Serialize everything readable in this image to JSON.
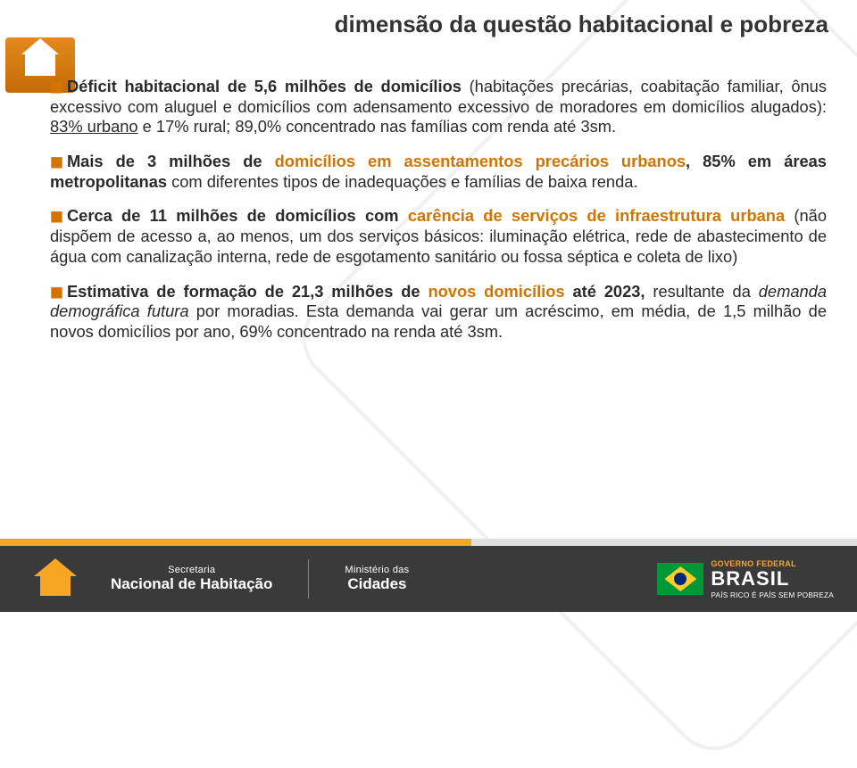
{
  "title": "dimensão da questão habitacional e pobreza",
  "bullets": {
    "b1": {
      "lead": "Déficit habitacional de 5,6 milhões de domicílios ",
      "rest_a": "(habitações precárias, coabitação familiar, ônus excessivo com aluguel e domicílios com adensamento excessivo de moradores em domicílios alugados): ",
      "u1": "83% urbano",
      "rest_b": " e 17% rural; 89,0% concentrado nas famílias com renda até  3sm."
    },
    "b2": {
      "lead_a": "Mais de 3 milhões de ",
      "hl_a": "domicílios em assentamentos precários urbanos",
      "lead_b": ", 85% em áreas metropolitanas ",
      "rest": "com diferentes tipos de inadequações e famílias de baixa renda."
    },
    "b3": {
      "lead": "Cerca de 11 milhões de domicílios com ",
      "hl_a": "carência de serviços de infraestrutura urbana ",
      "rest": "(não dispõem de acesso a, ao menos, um dos serviços básicos: iluminação elétrica, rede de abastecimento de água com canalização interna, rede de esgotamento sanitário ou fossa séptica e coleta de lixo)"
    },
    "b4": {
      "lead": "Estimativa de formação de 21,3 milhões de ",
      "hl_a": "novos domicílios",
      "lead_b": " até 2023, ",
      "rest_a": "resultante da ",
      "ital": "demanda demográfica futura",
      "rest_b": " por moradias. Esta demanda vai gerar um acréscimo, em média, de 1,5 milhão de novos domicílios por ano, 69% concentrado na renda até 3sm."
    }
  },
  "footer": {
    "secretaria_line1": "Secretaria",
    "secretaria_line2": "Nacional de Habitação",
    "ministerio_line1": "Ministério das",
    "ministerio_line2": "Cidades",
    "gov": "GOVERNO FEDERAL",
    "brasil": "BRASIL",
    "slogan": "PAÍS RICO É PAÍS SEM POBREZA"
  },
  "colors": {
    "orange": "#d47400",
    "accent": "#f6a623",
    "footer_bg": "#3a3a3a",
    "text": "#2a2a2a"
  }
}
